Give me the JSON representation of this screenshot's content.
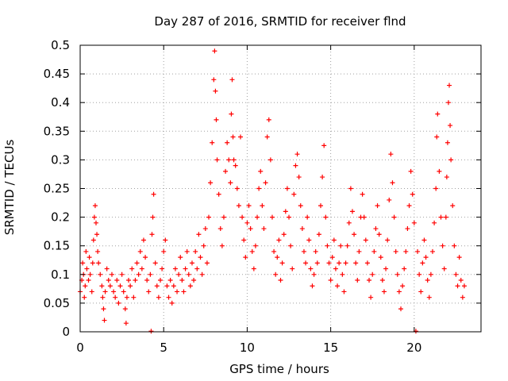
{
  "chart_data": {
    "type": "scatter",
    "title": "Day 287 of 2016, SRMTID for receiver flnd",
    "xlabel": "GPS time / hours",
    "ylabel": "SRMTID / TECUs",
    "xlim": [
      0,
      24
    ],
    "ylim": [
      0,
      0.5
    ],
    "x_ticks": [
      0,
      5,
      10,
      15,
      20
    ],
    "y_ticks": [
      0,
      0.05,
      0.1,
      0.15,
      0.2,
      0.25,
      0.3,
      0.35,
      0.4,
      0.45,
      0.5
    ],
    "x_tick_labels": [
      "0",
      "5",
      "10",
      "15",
      "20"
    ],
    "y_tick_labels": [
      "0",
      "0.05",
      "0.1",
      "0.15",
      "0.2",
      "0.25",
      "0.3",
      "0.35",
      "0.4",
      "0.45",
      "0.5"
    ],
    "grid": true,
    "marker": "+",
    "color": "#ff0000",
    "series": [
      {
        "name": "SRMTID",
        "points": [
          [
            0.0,
            0.07
          ],
          [
            0.1,
            0.09
          ],
          [
            0.15,
            0.12
          ],
          [
            0.2,
            0.1
          ],
          [
            0.25,
            0.06
          ],
          [
            0.3,
            0.08
          ],
          [
            0.35,
            0.14
          ],
          [
            0.4,
            0.11
          ],
          [
            0.5,
            0.09
          ],
          [
            0.55,
            0.13
          ],
          [
            0.6,
            0.1
          ],
          [
            0.7,
            0.07
          ],
          [
            0.75,
            0.12
          ],
          [
            0.8,
            0.16
          ],
          [
            0.85,
            0.2
          ],
          [
            0.9,
            0.22
          ],
          [
            0.95,
            0.19
          ],
          [
            1.0,
            0.17
          ],
          [
            1.05,
            0.14
          ],
          [
            1.1,
            0.12
          ],
          [
            1.2,
            0.1
          ],
          [
            1.3,
            0.08
          ],
          [
            1.35,
            0.06
          ],
          [
            1.4,
            0.04
          ],
          [
            1.45,
            0.02
          ],
          [
            1.5,
            0.07
          ],
          [
            1.6,
            0.11
          ],
          [
            1.7,
            0.09
          ],
          [
            1.8,
            0.08
          ],
          [
            1.9,
            0.1
          ],
          [
            2.0,
            0.07
          ],
          [
            2.1,
            0.06
          ],
          [
            2.2,
            0.09
          ],
          [
            2.3,
            0.05
          ],
          [
            2.4,
            0.08
          ],
          [
            2.5,
            0.1
          ],
          [
            2.6,
            0.07
          ],
          [
            2.7,
            0.04
          ],
          [
            2.75,
            0.015
          ],
          [
            2.8,
            0.06
          ],
          [
            2.9,
            0.09
          ],
          [
            3.0,
            0.08
          ],
          [
            3.1,
            0.11
          ],
          [
            3.2,
            0.06
          ],
          [
            3.3,
            0.09
          ],
          [
            3.4,
            0.12
          ],
          [
            3.5,
            0.1
          ],
          [
            3.6,
            0.14
          ],
          [
            3.7,
            0.11
          ],
          [
            3.8,
            0.16
          ],
          [
            3.9,
            0.13
          ],
          [
            4.0,
            0.09
          ],
          [
            4.1,
            0.07
          ],
          [
            4.2,
            0.1
          ],
          [
            4.25,
            0.001
          ],
          [
            4.3,
            0.17
          ],
          [
            4.35,
            0.2
          ],
          [
            4.4,
            0.24
          ],
          [
            4.5,
            0.12
          ],
          [
            4.6,
            0.08
          ],
          [
            4.7,
            0.06
          ],
          [
            4.8,
            0.09
          ],
          [
            4.9,
            0.11
          ],
          [
            5.0,
            0.14
          ],
          [
            5.1,
            0.16
          ],
          [
            5.2,
            0.08
          ],
          [
            5.3,
            0.06
          ],
          [
            5.4,
            0.09
          ],
          [
            5.5,
            0.05
          ],
          [
            5.6,
            0.08
          ],
          [
            5.7,
            0.11
          ],
          [
            5.8,
            0.07
          ],
          [
            5.9,
            0.1
          ],
          [
            6.0,
            0.13
          ],
          [
            6.1,
            0.09
          ],
          [
            6.2,
            0.07
          ],
          [
            6.3,
            0.11
          ],
          [
            6.4,
            0.14
          ],
          [
            6.5,
            0.1
          ],
          [
            6.6,
            0.08
          ],
          [
            6.7,
            0.12
          ],
          [
            6.8,
            0.09
          ],
          [
            6.9,
            0.14
          ],
          [
            7.0,
            0.11
          ],
          [
            7.1,
            0.17
          ],
          [
            7.2,
            0.13
          ],
          [
            7.3,
            0.1
          ],
          [
            7.4,
            0.15
          ],
          [
            7.5,
            0.18
          ],
          [
            7.6,
            0.12
          ],
          [
            7.7,
            0.2
          ],
          [
            7.8,
            0.26
          ],
          [
            7.9,
            0.33
          ],
          [
            8.0,
            0.44
          ],
          [
            8.05,
            0.49
          ],
          [
            8.1,
            0.42
          ],
          [
            8.15,
            0.37
          ],
          [
            8.2,
            0.3
          ],
          [
            8.3,
            0.24
          ],
          [
            8.4,
            0.18
          ],
          [
            8.5,
            0.15
          ],
          [
            8.6,
            0.2
          ],
          [
            8.7,
            0.28
          ],
          [
            8.8,
            0.33
          ],
          [
            8.9,
            0.3
          ],
          [
            9.0,
            0.26
          ],
          [
            9.05,
            0.38
          ],
          [
            9.1,
            0.44
          ],
          [
            9.15,
            0.34
          ],
          [
            9.2,
            0.3
          ],
          [
            9.3,
            0.29
          ],
          [
            9.4,
            0.25
          ],
          [
            9.5,
            0.22
          ],
          [
            9.6,
            0.34
          ],
          [
            9.7,
            0.2
          ],
          [
            9.8,
            0.16
          ],
          [
            9.9,
            0.13
          ],
          [
            10.0,
            0.19
          ],
          [
            10.1,
            0.22
          ],
          [
            10.2,
            0.18
          ],
          [
            10.3,
            0.14
          ],
          [
            10.4,
            0.11
          ],
          [
            10.5,
            0.15
          ],
          [
            10.6,
            0.2
          ],
          [
            10.7,
            0.25
          ],
          [
            10.8,
            0.28
          ],
          [
            10.9,
            0.22
          ],
          [
            11.0,
            0.18
          ],
          [
            11.1,
            0.26
          ],
          [
            11.2,
            0.34
          ],
          [
            11.3,
            0.37
          ],
          [
            11.4,
            0.3
          ],
          [
            11.5,
            0.2
          ],
          [
            11.6,
            0.14
          ],
          [
            11.7,
            0.1
          ],
          [
            11.8,
            0.13
          ],
          [
            11.9,
            0.16
          ],
          [
            12.0,
            0.09
          ],
          [
            12.1,
            0.12
          ],
          [
            12.2,
            0.17
          ],
          [
            12.3,
            0.21
          ],
          [
            12.4,
            0.25
          ],
          [
            12.5,
            0.2
          ],
          [
            12.6,
            0.15
          ],
          [
            12.7,
            0.11
          ],
          [
            12.8,
            0.24
          ],
          [
            12.9,
            0.29
          ],
          [
            13.0,
            0.31
          ],
          [
            13.1,
            0.27
          ],
          [
            13.2,
            0.22
          ],
          [
            13.3,
            0.18
          ],
          [
            13.4,
            0.14
          ],
          [
            13.5,
            0.12
          ],
          [
            13.6,
            0.2
          ],
          [
            13.7,
            0.16
          ],
          [
            13.8,
            0.11
          ],
          [
            13.9,
            0.08
          ],
          [
            14.0,
            0.1
          ],
          [
            14.1,
            0.14
          ],
          [
            14.2,
            0.12
          ],
          [
            14.3,
            0.17
          ],
          [
            14.4,
            0.22
          ],
          [
            14.5,
            0.27
          ],
          [
            14.6,
            0.325
          ],
          [
            14.7,
            0.2
          ],
          [
            14.8,
            0.15
          ],
          [
            14.9,
            0.12
          ],
          [
            15.0,
            0.09
          ],
          [
            15.1,
            0.13
          ],
          [
            15.2,
            0.16
          ],
          [
            15.3,
            0.11
          ],
          [
            15.4,
            0.08
          ],
          [
            15.5,
            0.12
          ],
          [
            15.6,
            0.15
          ],
          [
            15.7,
            0.1
          ],
          [
            15.8,
            0.07
          ],
          [
            15.9,
            0.12
          ],
          [
            16.0,
            0.15
          ],
          [
            16.1,
            0.19
          ],
          [
            16.2,
            0.25
          ],
          [
            16.3,
            0.21
          ],
          [
            16.4,
            0.17
          ],
          [
            16.5,
            0.12
          ],
          [
            16.6,
            0.09
          ],
          [
            16.7,
            0.14
          ],
          [
            16.8,
            0.2
          ],
          [
            16.9,
            0.24
          ],
          [
            17.0,
            0.2
          ],
          [
            17.1,
            0.16
          ],
          [
            17.2,
            0.12
          ],
          [
            17.3,
            0.09
          ],
          [
            17.4,
            0.06
          ],
          [
            17.5,
            0.1
          ],
          [
            17.6,
            0.14
          ],
          [
            17.7,
            0.18
          ],
          [
            17.8,
            0.22
          ],
          [
            17.9,
            0.17
          ],
          [
            18.0,
            0.13
          ],
          [
            18.1,
            0.09
          ],
          [
            18.2,
            0.07
          ],
          [
            18.3,
            0.11
          ],
          [
            18.4,
            0.16
          ],
          [
            18.5,
            0.23
          ],
          [
            18.6,
            0.31
          ],
          [
            18.7,
            0.26
          ],
          [
            18.8,
            0.2
          ],
          [
            18.9,
            0.14
          ],
          [
            19.0,
            0.1
          ],
          [
            19.1,
            0.07
          ],
          [
            19.2,
            0.04
          ],
          [
            19.3,
            0.08
          ],
          [
            19.4,
            0.11
          ],
          [
            19.5,
            0.14
          ],
          [
            19.6,
            0.18
          ],
          [
            19.7,
            0.22
          ],
          [
            19.8,
            0.28
          ],
          [
            19.9,
            0.24
          ],
          [
            20.0,
            0.19
          ],
          [
            20.1,
            0.001
          ],
          [
            20.2,
            0.14
          ],
          [
            20.3,
            0.1
          ],
          [
            20.4,
            0.07
          ],
          [
            20.5,
            0.12
          ],
          [
            20.6,
            0.16
          ],
          [
            20.7,
            0.13
          ],
          [
            20.8,
            0.09
          ],
          [
            20.9,
            0.06
          ],
          [
            21.0,
            0.1
          ],
          [
            21.1,
            0.14
          ],
          [
            21.2,
            0.19
          ],
          [
            21.3,
            0.25
          ],
          [
            21.35,
            0.34
          ],
          [
            21.4,
            0.38
          ],
          [
            21.5,
            0.28
          ],
          [
            21.6,
            0.2
          ],
          [
            21.7,
            0.15
          ],
          [
            21.8,
            0.11
          ],
          [
            21.9,
            0.2
          ],
          [
            21.95,
            0.27
          ],
          [
            22.0,
            0.33
          ],
          [
            22.05,
            0.4
          ],
          [
            22.1,
            0.43
          ],
          [
            22.15,
            0.36
          ],
          [
            22.2,
            0.3
          ],
          [
            22.3,
            0.22
          ],
          [
            22.4,
            0.15
          ],
          [
            22.5,
            0.1
          ],
          [
            22.6,
            0.08
          ],
          [
            22.7,
            0.13
          ],
          [
            22.8,
            0.09
          ],
          [
            22.9,
            0.06
          ],
          [
            23.0,
            0.08
          ]
        ]
      }
    ]
  }
}
